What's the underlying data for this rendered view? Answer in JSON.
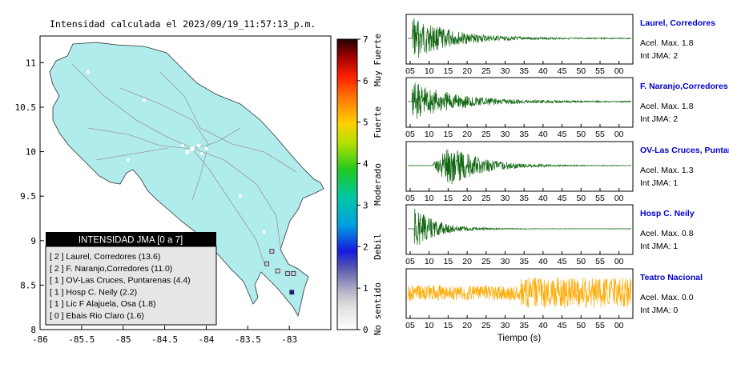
{
  "map": {
    "title": "Intensidad calculada el 2023/09/19_11:57:13_p.m.",
    "x_ticks": [
      "-86",
      "-85.5",
      "-85",
      "-84.5",
      "-84",
      "-83.5",
      "-83"
    ],
    "y_ticks": [
      "8",
      "8.5",
      "9",
      "9.5",
      "10",
      "10.5",
      "11"
    ],
    "legend": {
      "header": "INTENSIDAD JMA [0 a 7]",
      "items": [
        "[ 2 ]  Laurel, Corredores (13.6)",
        "[ 2 ]  F. Naranjo,Corredores (11.0)",
        "[ 1 ]  OV-Las Cruces, Puntarenas (4.4)",
        "[ 1 ]  Hosp C. Neily (2.2)",
        "[ 1 ]  Lic F Alajuela, Osa (1.8)",
        "[ 0 ]  Ebais Rio Claro (1.6)"
      ]
    },
    "colors": {
      "land": "#b0ecec",
      "legend_header_bg": "#000000",
      "legend_bg": "#e6e6e6"
    }
  },
  "colorbar": {
    "ticks": [
      "0",
      "1",
      "2",
      "3",
      "4",
      "5",
      "6",
      "7"
    ],
    "labels": [
      "No sentido",
      "Debil",
      "Moderado",
      "Fuerte",
      "Muy Fuerte"
    ]
  },
  "waveforms": {
    "x_ticks_full": [
      "05",
      "10",
      "15",
      "20",
      "25",
      "30",
      "35",
      "40",
      "45",
      "50",
      "55",
      "00"
    ],
    "x_ticks_last": [
      "05",
      "10",
      "15",
      "20",
      "25",
      "30",
      "35",
      "40",
      "45",
      "50",
      "55",
      "00"
    ],
    "xlabel": "Tiempo (s)",
    "stations": [
      {
        "name": "Laurel, Corredores",
        "acel": "Acel. Max. 1.8",
        "jma": "Int JMA: 2",
        "color": "#116611"
      },
      {
        "name": "F. Naranjo,Corredores",
        "acel": "Acel. Max. 1.8",
        "jma": "Int JMA: 2",
        "color": "#116611"
      },
      {
        "name": "OV-Las Cruces, Puntar",
        "acel": "Acel. Max. 1.3",
        "jma": "Int JMA: 1",
        "color": "#116611"
      },
      {
        "name": "Hosp C. Neily",
        "acel": "Acel. Max. 0.8",
        "jma": "Int JMA: 1",
        "color": "#116611"
      },
      {
        "name": "Teatro Nacional",
        "acel": "Acel. Max. 0.0",
        "jma": "Int JMA: 0",
        "color": "#ffaa00"
      }
    ]
  },
  "chart_data": [
    {
      "type": "scatter",
      "title": "Intensidad calculada el 2023/09/19_11:57:13_p.m.",
      "xlim": [
        -86,
        -82.5
      ],
      "ylim": [
        8,
        11.3
      ],
      "series": [
        {
          "values": [
            {
              "x": -82.97,
              "y": 8.42
            },
            {
              "x": -83.02,
              "y": 8.63
            },
            {
              "x": -83.14,
              "y": 8.66
            },
            {
              "x": -83.27,
              "y": 8.74
            },
            {
              "x": -83.21,
              "y": 8.88
            },
            {
              "x": -82.95,
              "y": 8.63
            }
          ]
        }
      ]
    },
    {
      "type": "heatmap",
      "title": "",
      "ylim": [
        0,
        7
      ],
      "ticks": [
        0,
        1,
        2,
        3,
        4,
        5,
        6,
        7
      ],
      "bands": [
        "No sentido",
        "Debil",
        "Moderado",
        "Fuerte",
        "Muy Fuerte"
      ]
    },
    {
      "type": "line",
      "xlabel": "Tiempo (s)",
      "x_ticks": [
        "05",
        "10",
        "15",
        "20",
        "25",
        "30",
        "35",
        "40",
        "45",
        "50",
        "55",
        "00"
      ],
      "series": [
        {
          "name": "Laurel, Corredores",
          "values": []
        },
        {
          "name": "F. Naranjo,Corredores",
          "values": []
        },
        {
          "name": "OV-Las Cruces, Puntar",
          "values": []
        },
        {
          "name": "Hosp C. Neily",
          "values": []
        },
        {
          "name": "Teatro Nacional",
          "values": []
        }
      ]
    }
  ]
}
